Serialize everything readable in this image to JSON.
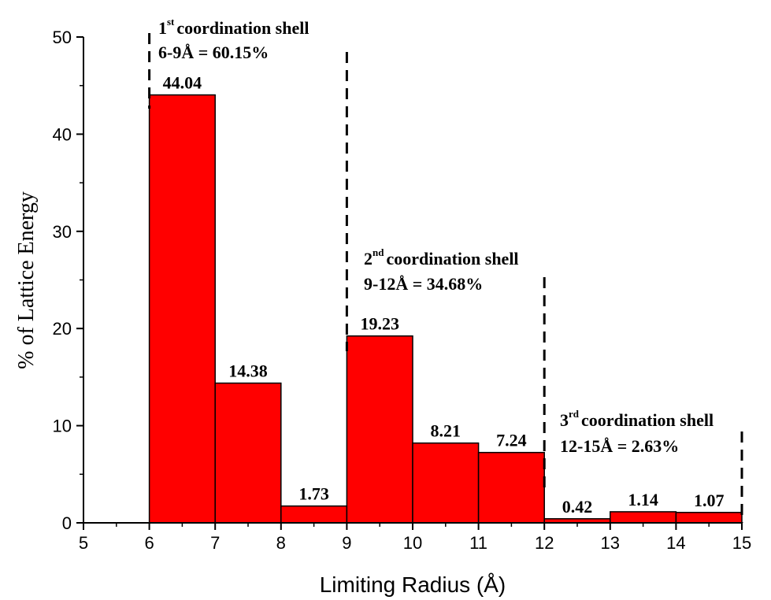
{
  "chart_data": {
    "type": "bar",
    "xlabel": "Limiting Radius (Å)",
    "ylabel": "% of Lattice Energy",
    "xlim": [
      5,
      15
    ],
    "ylim": [
      0,
      50
    ],
    "x_ticks": [
      "5",
      "6",
      "7",
      "8",
      "9",
      "10",
      "11",
      "12",
      "13",
      "14",
      "15"
    ],
    "y_ticks": [
      "0",
      "10",
      "20",
      "30",
      "40",
      "50"
    ],
    "bin_edges": [
      6,
      7,
      8,
      9,
      10,
      11,
      12,
      13,
      14,
      15
    ],
    "values": [
      44.04,
      14.38,
      1.73,
      19.23,
      8.21,
      7.24,
      0.42,
      1.14,
      1.07
    ],
    "data_labels": [
      "44.04",
      "14.38",
      "1.73",
      "19.23",
      "8.21",
      "7.24",
      "0.42",
      "1.14",
      "1.07"
    ],
    "bar_color": "#ff0000",
    "annotations": [
      {
        "ordinal": "1",
        "suffix": "st",
        "title": "coordination shell",
        "range_text": "6-9Å = 60.15%",
        "from": 6,
        "to": 9
      },
      {
        "ordinal": "2",
        "suffix": "nd",
        "title": "coordination shell",
        "range_text": "9-12Å = 34.68%",
        "from": 9,
        "to": 12
      },
      {
        "ordinal": "3",
        "suffix": "rd",
        "title": "coordination shell",
        "range_text": "12-15Å = 2.63%",
        "from": 12,
        "to": 15
      }
    ]
  }
}
